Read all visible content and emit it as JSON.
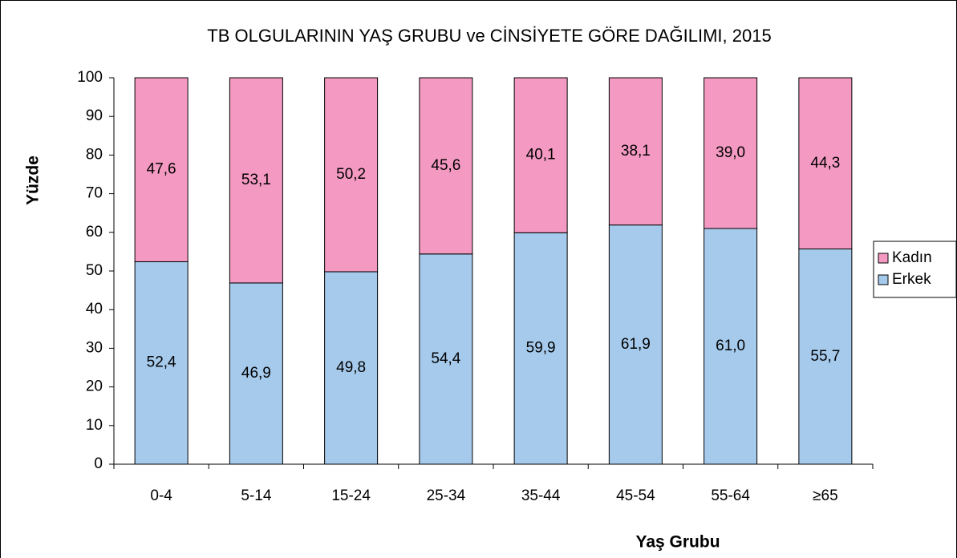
{
  "chart_data": {
    "type": "stacked_bar",
    "title": "TB OLGULARININ YAŞ GRUBU ve CİNSİYETE GÖRE DAĞILIMI, 2015",
    "x_label": "Yaş Grubu",
    "y_label": "Yüzde",
    "categories": [
      "0-4",
      "5-14",
      "15-24",
      "25-34",
      "35-44",
      "45-54",
      "55-64",
      "≥65"
    ],
    "series": [
      {
        "name": "Erkek",
        "color": "#a6caec",
        "values": [
          52.4,
          46.9,
          49.8,
          54.4,
          59.9,
          61.9,
          61.0,
          55.7
        ],
        "value_labels": [
          "52,4",
          "46,9",
          "49,8",
          "54,4",
          "59,9",
          "61,9",
          "61,0",
          "55,7"
        ]
      },
      {
        "name": "Kadın",
        "color": "#f49ac2",
        "values": [
          47.6,
          53.1,
          50.2,
          45.6,
          40.1,
          38.1,
          39.0,
          44.3
        ],
        "value_labels": [
          "47,6",
          "53,1",
          "50,2",
          "45,6",
          "40,1",
          "38,1",
          "39,0",
          "44,3"
        ]
      }
    ],
    "ylim": [
      0,
      100
    ],
    "yticks": [
      0,
      10,
      20,
      30,
      40,
      50,
      60,
      70,
      80,
      90,
      100
    ],
    "legend": "right"
  }
}
